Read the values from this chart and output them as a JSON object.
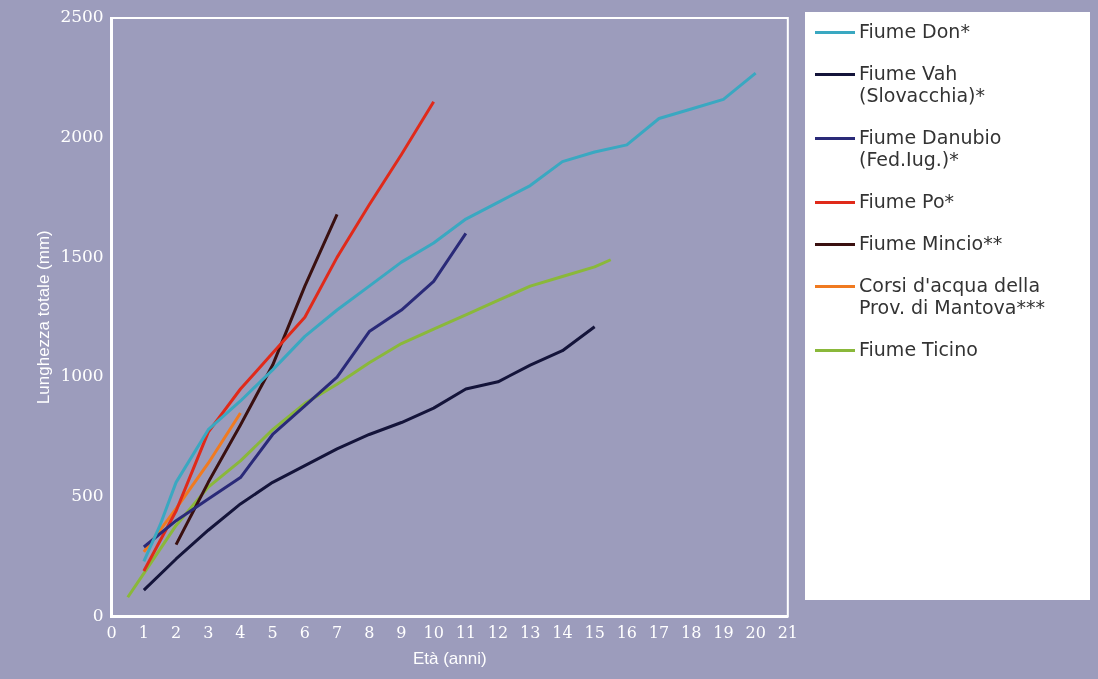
{
  "chart_data": {
    "type": "line",
    "xlabel": "Età (anni)",
    "ylabel": "Lunghezza totale (mm)",
    "xlim": [
      0,
      21
    ],
    "xticks": [
      0,
      1,
      2,
      3,
      4,
      5,
      6,
      7,
      8,
      9,
      10,
      11,
      12,
      13,
      14,
      15,
      16,
      17,
      18,
      19,
      20,
      21
    ],
    "ylim": [
      0,
      2500
    ],
    "yticks": [
      0,
      500,
      1000,
      1500,
      2000,
      2500
    ],
    "grid": false,
    "legend": "right",
    "marker": "none",
    "line_style": "solid",
    "series": [
      {
        "name": "Fiume Don*",
        "color": "#3aa8c1",
        "x": [
          1,
          1.5,
          2,
          3,
          4,
          5,
          6,
          7,
          8,
          9,
          10,
          11,
          12,
          13,
          14,
          15,
          16,
          17,
          18,
          19,
          20
        ],
        "values": [
          230,
          380,
          560,
          780,
          900,
          1030,
          1170,
          1280,
          1380,
          1480,
          1560,
          1660,
          1730,
          1800,
          1900,
          1940,
          1970,
          2080,
          2120,
          2160,
          2270
        ]
      },
      {
        "name": "Fiume Vah (Slovacchia)*",
        "color": "#14143a",
        "x": [
          1,
          2,
          3,
          4,
          5,
          6,
          7,
          8,
          9,
          10,
          11,
          12,
          13,
          14,
          15
        ],
        "values": [
          110,
          240,
          360,
          470,
          560,
          630,
          700,
          760,
          810,
          870,
          950,
          980,
          1050,
          1110,
          1210
        ]
      },
      {
        "name": "Fiume Danubio (Fed.Iug.)*",
        "color": "#2a2a78",
        "x": [
          1,
          2,
          3,
          4,
          5,
          6,
          7,
          8,
          9,
          10,
          11
        ],
        "values": [
          290,
          400,
          490,
          580,
          760,
          880,
          1000,
          1190,
          1280,
          1400,
          1600
        ]
      },
      {
        "name": "Fiume Po*",
        "color": "#e02a1a",
        "x": [
          1,
          2,
          3,
          4,
          5,
          6,
          7,
          8,
          9,
          10
        ],
        "values": [
          190,
          440,
          770,
          950,
          1100,
          1250,
          1500,
          1720,
          1930,
          2150
        ]
      },
      {
        "name": "Fiume Mincio**",
        "color": "#3a1010",
        "x": [
          2,
          3,
          4,
          5,
          6,
          7
        ],
        "values": [
          300,
          560,
          800,
          1050,
          1380,
          1680
        ]
      },
      {
        "name": "Corsi d'acqua della Prov. di Mantova***",
        "color": "#f07a20",
        "x": [
          1,
          2,
          3,
          4
        ],
        "values": [
          270,
          450,
          640,
          850
        ]
      },
      {
        "name": "Fiume Ticino",
        "color": "#8ab83a",
        "x": [
          0.5,
          1,
          2,
          3,
          4,
          5,
          6,
          7,
          8,
          9,
          10,
          11,
          12,
          13,
          14,
          15,
          15.5
        ],
        "values": [
          80,
          180,
          380,
          540,
          650,
          780,
          890,
          970,
          1060,
          1140,
          1200,
          1260,
          1320,
          1380,
          1420,
          1460,
          1490
        ]
      }
    ]
  }
}
